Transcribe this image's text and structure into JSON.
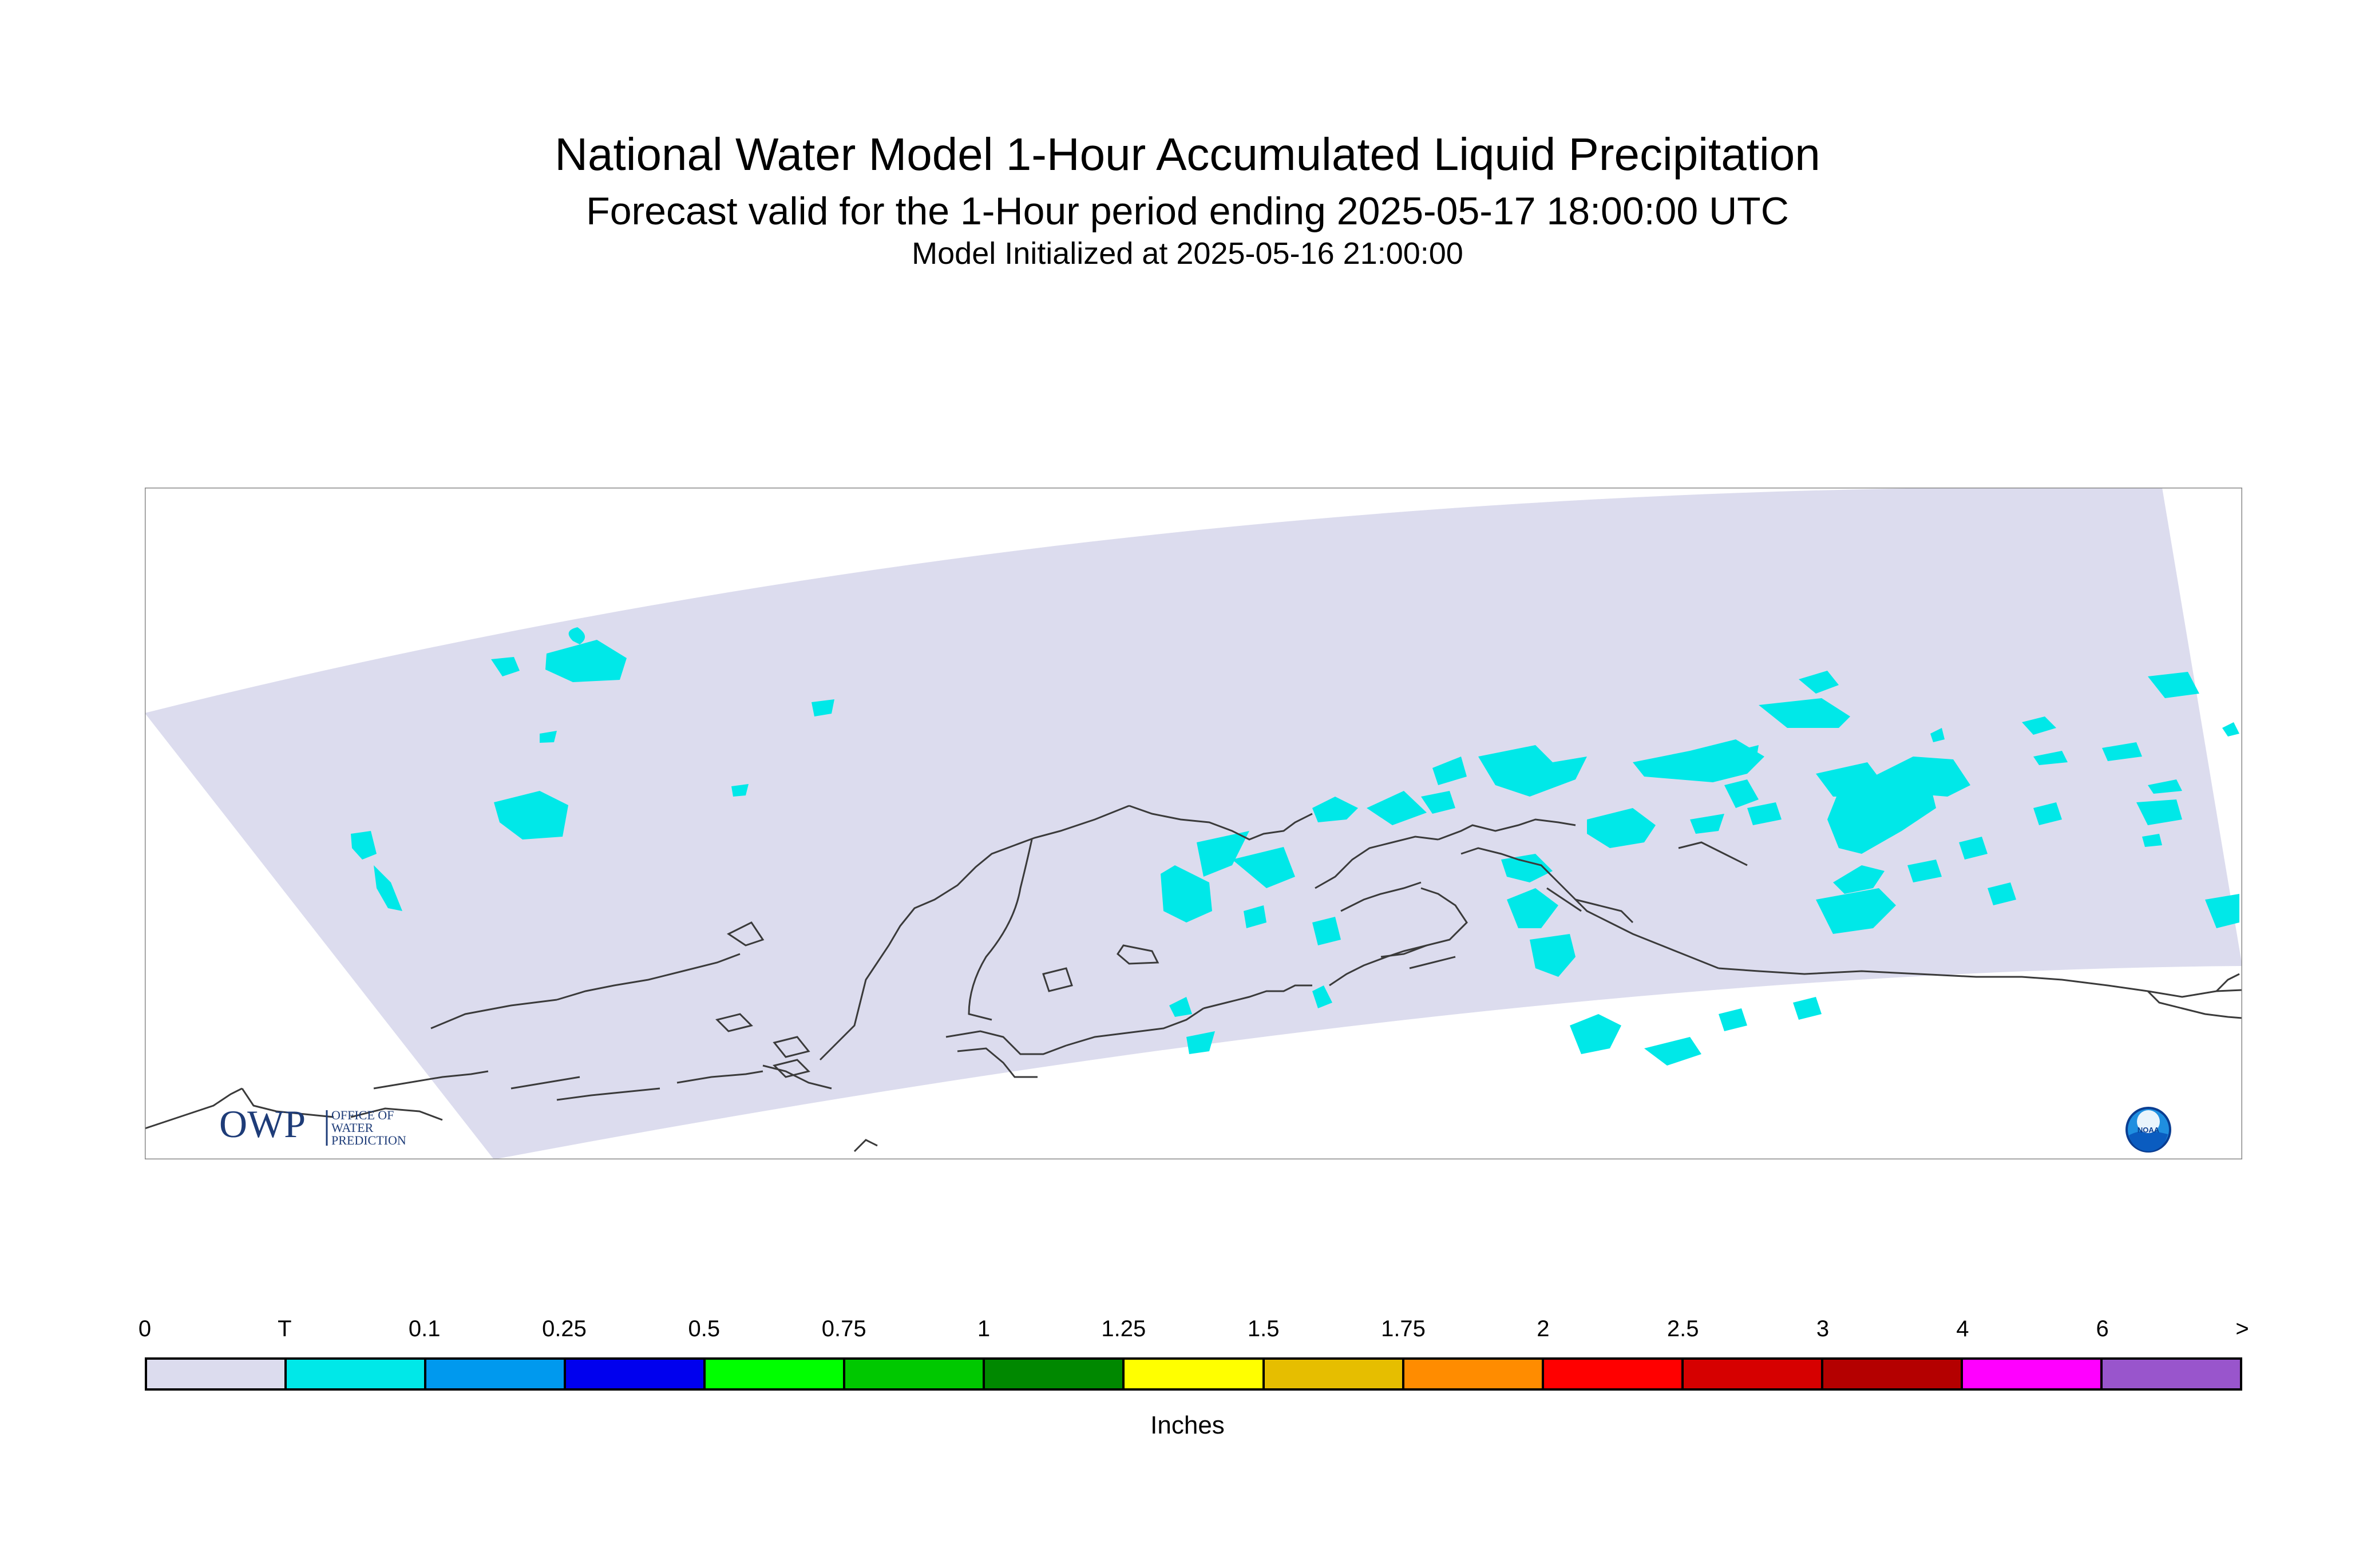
{
  "header": {
    "title": "National Water Model 1-Hour Accumulated Liquid Precipitation",
    "subtitle": "Forecast valid for the 1-Hour period ending 2025-05-17 18:00:00 UTC",
    "init": "Model Initialized at 2025-05-16 21:00:00"
  },
  "map": {
    "domain_fill": "#dcdcee",
    "precip_color": "#00e8e8",
    "coast_color": "#3a3a3a"
  },
  "logos": {
    "owp": {
      "mark": "OWP",
      "lines": [
        "OFFICE OF",
        "WATER",
        "PREDICTION"
      ],
      "color": "#1e3c78"
    },
    "noaa": {
      "text": "NOAA"
    }
  },
  "legend": {
    "labels": [
      "0",
      "T",
      "0.1",
      "0.25",
      "0.5",
      "0.75",
      "1",
      "1.25",
      "1.5",
      "1.75",
      "2",
      "2.5",
      "3",
      "4",
      "6",
      ">"
    ],
    "colors": [
      "#dcdcee",
      "#00e8e8",
      "#0099ee",
      "#0000ee",
      "#00ff00",
      "#00c800",
      "#008800",
      "#ffff00",
      "#e6be00",
      "#ff8c00",
      "#ff0000",
      "#d60000",
      "#b40000",
      "#ff00ff",
      "#9955cc"
    ],
    "units": "Inches"
  }
}
